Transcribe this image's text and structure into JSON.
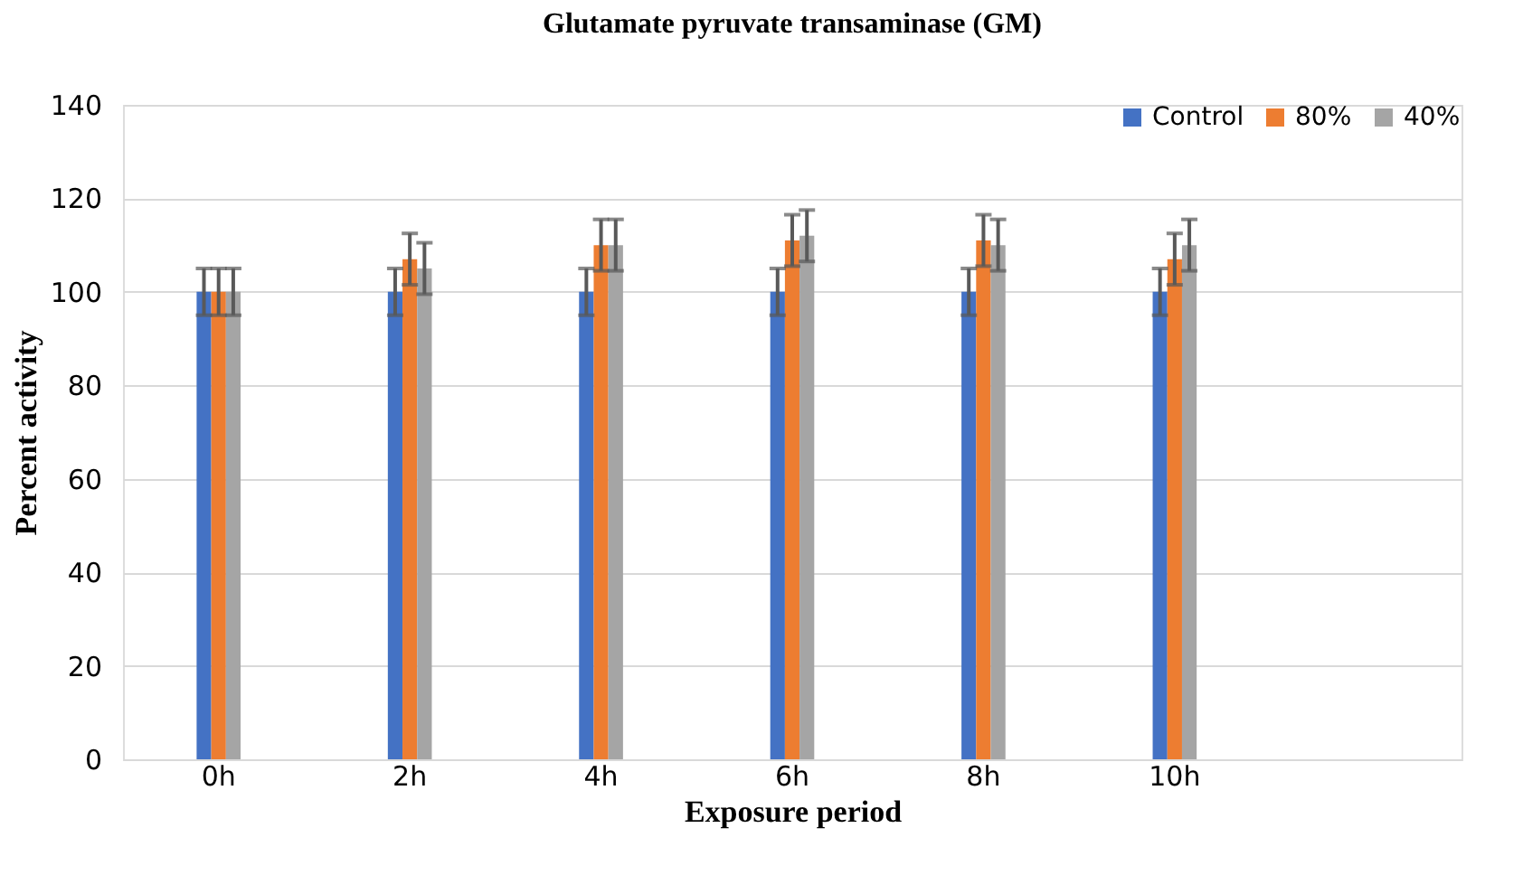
{
  "chart_data": {
    "type": "bar",
    "title": "Glutamate pyruvate transaminase (GM)",
    "xlabel": "Exposure period",
    "ylabel": "Percent activity",
    "categories": [
      "0h",
      "2h",
      "4h",
      "6h",
      "8h",
      "10h",
      null
    ],
    "series": [
      {
        "name": "Control",
        "color": "#4472c4",
        "values": [
          100,
          100,
          100,
          100,
          100,
          100,
          null
        ],
        "errors": [
          5,
          5,
          5,
          5,
          5,
          5,
          null
        ]
      },
      {
        "name": "80%",
        "color": "#ed7d31",
        "values": [
          100,
          107,
          110,
          111,
          111,
          107,
          null
        ],
        "errors": [
          5,
          5.5,
          5.5,
          5.5,
          5.5,
          5.5,
          null
        ]
      },
      {
        "name": "40%",
        "color": "#a5a5a5",
        "values": [
          100,
          105,
          110,
          112,
          110,
          110,
          null
        ],
        "errors": [
          5,
          5.5,
          5.5,
          5.5,
          5.5,
          5.5,
          null
        ]
      }
    ],
    "ylim": [
      0,
      140
    ],
    "yticks": [
      0,
      20,
      40,
      60,
      80,
      100,
      120,
      140
    ],
    "grid": "y",
    "legend": "top right"
  }
}
